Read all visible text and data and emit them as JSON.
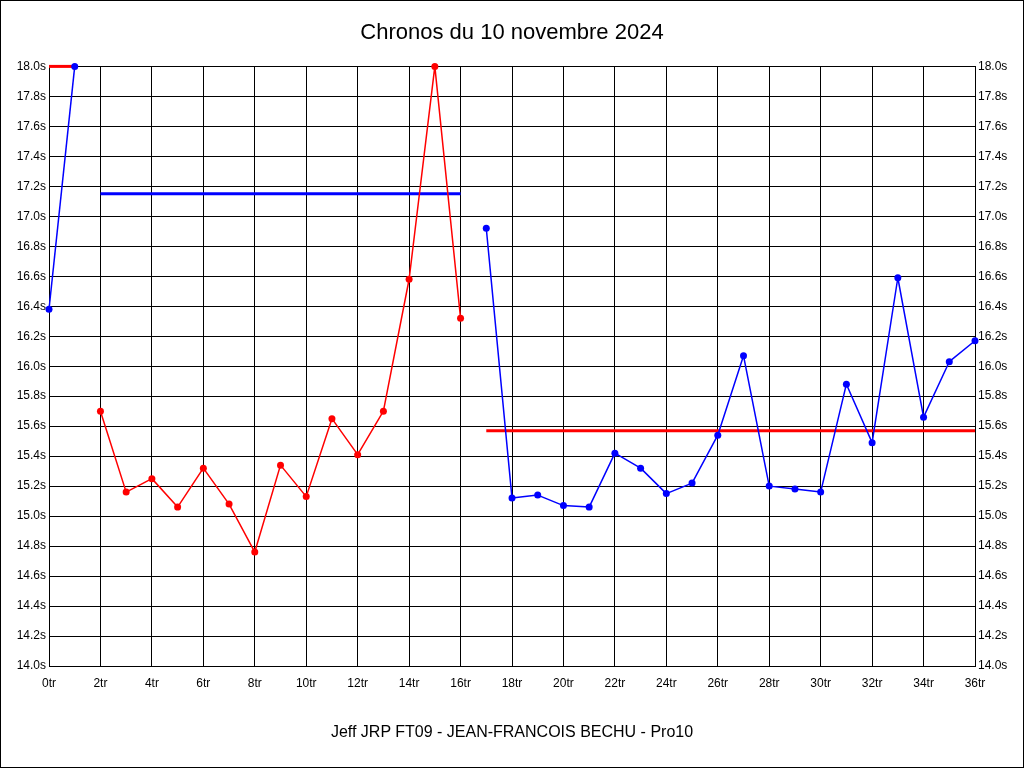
{
  "chart_data": {
    "type": "line",
    "title": "Chronos du 10 novembre 2024",
    "xlabel": "Jeff JRP FT09 - JEAN-FRANCOIS BECHU - Pro10",
    "xlim": [
      0,
      36
    ],
    "xticks": [
      {
        "value": 0,
        "label": "0tr"
      },
      {
        "value": 2,
        "label": "2tr"
      },
      {
        "value": 4,
        "label": "4tr"
      },
      {
        "value": 6,
        "label": "6tr"
      },
      {
        "value": 8,
        "label": "8tr"
      },
      {
        "value": 10,
        "label": "10tr"
      },
      {
        "value": 12,
        "label": "12tr"
      },
      {
        "value": 14,
        "label": "14tr"
      },
      {
        "value": 16,
        "label": "16tr"
      },
      {
        "value": 18,
        "label": "18tr"
      },
      {
        "value": 20,
        "label": "20tr"
      },
      {
        "value": 22,
        "label": "22tr"
      },
      {
        "value": 24,
        "label": "24tr"
      },
      {
        "value": 26,
        "label": "26tr"
      },
      {
        "value": 28,
        "label": "28tr"
      },
      {
        "value": 30,
        "label": "30tr"
      },
      {
        "value": 32,
        "label": "32tr"
      },
      {
        "value": 34,
        "label": "34tr"
      },
      {
        "value": 36,
        "label": "36tr"
      }
    ],
    "ylim": [
      14,
      18
    ],
    "yticks": [
      {
        "value": 14,
        "label": "14.0s"
      },
      {
        "value": 14.2,
        "label": "14.2s"
      },
      {
        "value": 14.4,
        "label": "14.4s"
      },
      {
        "value": 14.6,
        "label": "14.6s"
      },
      {
        "value": 14.8,
        "label": "14.8s"
      },
      {
        "value": 15,
        "label": "15.0s"
      },
      {
        "value": 15.2,
        "label": "15.2s"
      },
      {
        "value": 15.4,
        "label": "15.4s"
      },
      {
        "value": 15.6,
        "label": "15.6s"
      },
      {
        "value": 15.8,
        "label": "15.8s"
      },
      {
        "value": 16,
        "label": "16.0s"
      },
      {
        "value": 16.2,
        "label": "16.2s"
      },
      {
        "value": 16.4,
        "label": "16.4s"
      },
      {
        "value": 16.6,
        "label": "16.6s"
      },
      {
        "value": 16.8,
        "label": "16.8s"
      },
      {
        "value": 17,
        "label": "17.0s"
      },
      {
        "value": 17.2,
        "label": "17.2s"
      },
      {
        "value": 17.4,
        "label": "17.4s"
      },
      {
        "value": 17.6,
        "label": "17.6s"
      },
      {
        "value": 17.8,
        "label": "17.8s"
      },
      {
        "value": 18,
        "label": "18.0s"
      }
    ],
    "y2lim": [
      14,
      18
    ],
    "y2ticks": [
      {
        "value": 14,
        "label": "14.0s"
      },
      {
        "value": 14.2,
        "label": "14.2s"
      },
      {
        "value": 14.4,
        "label": "14.4s"
      },
      {
        "value": 14.6,
        "label": "14.6s"
      },
      {
        "value": 14.8,
        "label": "14.8s"
      },
      {
        "value": 15,
        "label": "15.0s"
      },
      {
        "value": 15.2,
        "label": "15.2s"
      },
      {
        "value": 15.4,
        "label": "15.4s"
      },
      {
        "value": 15.6,
        "label": "15.6s"
      },
      {
        "value": 15.8,
        "label": "15.8s"
      },
      {
        "value": 16,
        "label": "16.0s"
      },
      {
        "value": 16.2,
        "label": "16.2s"
      },
      {
        "value": 16.4,
        "label": "16.4s"
      },
      {
        "value": 16.6,
        "label": "16.6s"
      },
      {
        "value": 16.8,
        "label": "16.8s"
      },
      {
        "value": 17,
        "label": "17.0s"
      },
      {
        "value": 17.2,
        "label": "17.2s"
      },
      {
        "value": 17.4,
        "label": "17.4s"
      },
      {
        "value": 17.6,
        "label": "17.6s"
      },
      {
        "value": 17.8,
        "label": "17.8s"
      },
      {
        "value": 18,
        "label": "18.0s"
      }
    ],
    "grid": true,
    "marker": "circle",
    "series": [
      {
        "color": "#0000ff",
        "x": [
          0,
          1
        ],
        "values": [
          16.38,
          18.0
        ]
      },
      {
        "color": "#ff0000",
        "marker": "none",
        "x": [
          0,
          1
        ],
        "values": [
          18.0,
          18.0
        ]
      },
      {
        "color": "#ff0000",
        "x": [
          2,
          3,
          4,
          5,
          6,
          7,
          8,
          9,
          10,
          11,
          12,
          13,
          14,
          15,
          16
        ],
        "values": [
          15.7,
          15.16,
          15.25,
          15.06,
          15.32,
          15.08,
          14.76,
          15.34,
          15.13,
          15.65,
          15.41,
          15.7,
          16.58,
          18.0,
          16.32
        ]
      },
      {
        "color": "#0000ff",
        "marker": "none",
        "x": [
          2,
          16
        ],
        "values": [
          17.15,
          17.15
        ]
      },
      {
        "color": "#0000ff",
        "x": [
          17,
          18,
          19,
          20,
          21,
          22,
          23,
          24,
          25,
          26,
          27,
          28,
          29,
          30,
          31,
          32,
          33,
          34,
          35,
          36
        ],
        "values": [
          16.92,
          15.12,
          15.14,
          15.07,
          15.06,
          15.42,
          15.32,
          15.15,
          15.22,
          15.54,
          16.07,
          15.2,
          15.18,
          15.16,
          15.88,
          15.49,
          16.59,
          15.66,
          16.03,
          16.17
        ]
      },
      {
        "color": "#ff0000",
        "marker": "none",
        "x": [
          17,
          36
        ],
        "values": [
          15.57,
          15.57
        ]
      }
    ]
  }
}
